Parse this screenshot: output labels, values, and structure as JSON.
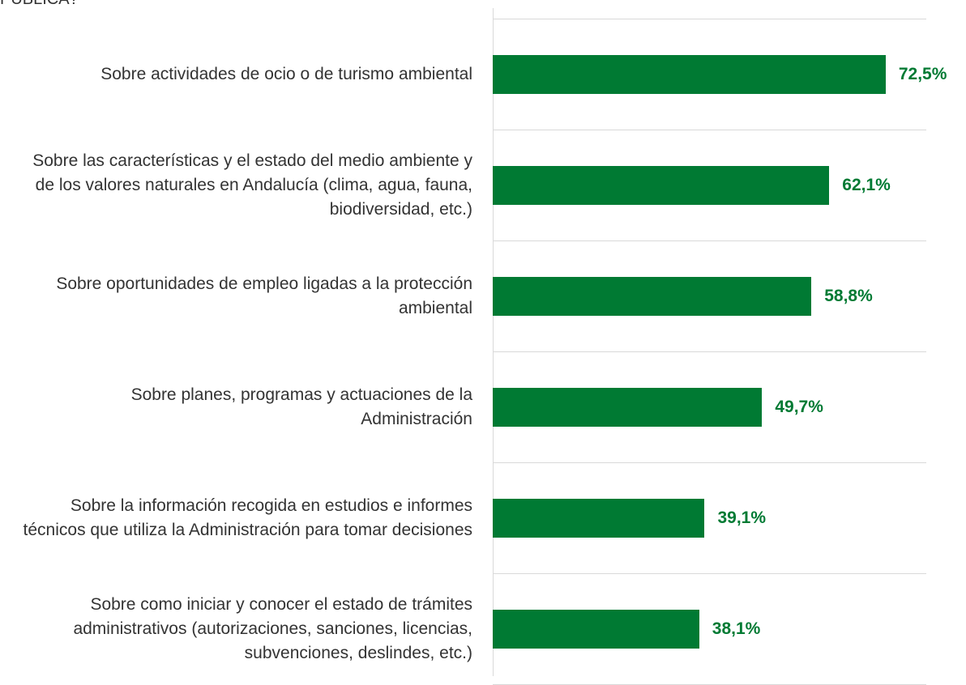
{
  "chart_data": {
    "type": "bar",
    "orientation": "horizontal",
    "title": "PÚBLICA?",
    "categories": [
      "Sobre actividades de ocio o de turismo ambiental",
      "Sobre las características y el estado del medio ambiente y de los valores naturales en Andalucía (clima, agua, fauna, biodiversidad, etc.)",
      "Sobre oportunidades de empleo ligadas a la protección ambiental",
      "Sobre planes, programas y actuaciones de la Administración",
      "Sobre la información recogida en estudios e informes técnicos que utiliza la Administración para tomar decisiones",
      "Sobre como iniciar y conocer el estado de trámites administrativos (autorizaciones, sanciones, licencias, subvenciones, deslindes, etc.)"
    ],
    "values": [
      72.5,
      62.1,
      58.8,
      49.7,
      39.1,
      38.1
    ],
    "value_labels": [
      "72,5%",
      "62,1%",
      "58,8%",
      "49,7%",
      "39,1%",
      "38,1%"
    ],
    "color": "#007a33",
    "xlim": [
      0,
      80
    ]
  }
}
